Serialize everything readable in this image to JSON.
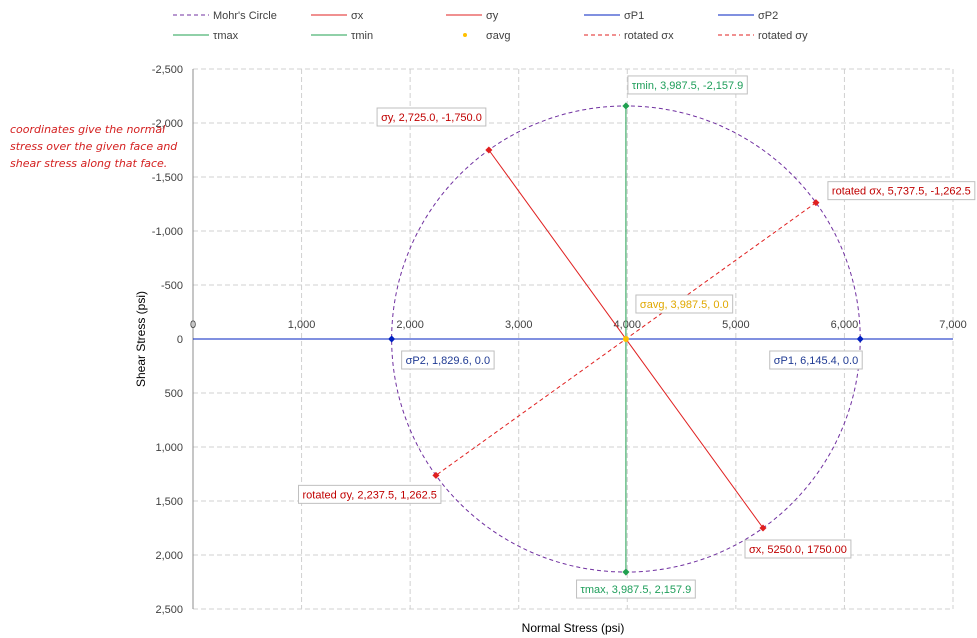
{
  "annotation": "coordinates give the normal stress over the given face and shear stress along that face.",
  "chart_data": {
    "type": "scatter",
    "title": "",
    "xlabel": "Normal Stress (psi)",
    "ylabel": "Shear Stress (psi)",
    "xlim": [
      0,
      7000
    ],
    "ylim": [
      -2500,
      2500
    ],
    "y_reversed": true,
    "x_ticks": [
      "0",
      "1,000",
      "2,000",
      "3,000",
      "4,000",
      "5,000",
      "6,000",
      "7,000"
    ],
    "y_ticks": [
      "-2,500",
      "-2,000",
      "-1,500",
      "-1,000",
      "-500",
      "0",
      "500",
      "1,000",
      "1,500",
      "2,000",
      "2,500"
    ],
    "grid": true,
    "legend_position": "top",
    "legend": [
      {
        "name": "Mohr's Circle",
        "color": "#7030a0",
        "style": "dashed"
      },
      {
        "name": "σx",
        "color": "#e02020",
        "style": "solid"
      },
      {
        "name": "σy",
        "color": "#e02020",
        "style": "solid"
      },
      {
        "name": "σP1",
        "color": "#0020c0",
        "style": "solid"
      },
      {
        "name": "σP2",
        "color": "#0020c0",
        "style": "solid"
      },
      {
        "name": "τmax",
        "color": "#20a050",
        "style": "solid"
      },
      {
        "name": "τmin",
        "color": "#20a050",
        "style": "solid"
      },
      {
        "name": "σavg",
        "color": "#ffc000",
        "style": "marker"
      },
      {
        "name": "rotated σx",
        "color": "#e02020",
        "style": "dashed"
      },
      {
        "name": "rotated σy",
        "color": "#e02020",
        "style": "dashed"
      }
    ],
    "circle": {
      "center_x": 3987.5,
      "center_y": 0,
      "radius": 2157.9,
      "color": "#7030a0"
    },
    "lines": [
      {
        "name": "σx-σy",
        "from": [
          2725.0,
          -1750.0
        ],
        "to": [
          5250.0,
          1750.0
        ],
        "color": "#e02020",
        "dash": false
      },
      {
        "name": "rotated",
        "from": [
          5737.5,
          -1262.5
        ],
        "to": [
          2237.5,
          1262.5
        ],
        "color": "#e02020",
        "dash": true
      },
      {
        "name": "principal",
        "from": [
          0,
          0
        ],
        "to": [
          7000,
          0
        ],
        "color": "#0020c0",
        "dash": false
      },
      {
        "name": "shear",
        "from": [
          3987.5,
          -2157.9
        ],
        "to": [
          3987.5,
          2157.9
        ],
        "color": "#20a050",
        "dash": false
      }
    ],
    "points": [
      {
        "name": "σy",
        "x": 2725.0,
        "y": -1750.0,
        "label": "σy, 2,725.0, -1,750.0",
        "color": "#e02020",
        "label_color": "#c00000",
        "pos": "left-top"
      },
      {
        "name": "σx",
        "x": 5250.0,
        "y": 1750.0,
        "label": "σx, 5250.0, 1750.00",
        "color": "#e02020",
        "label_color": "#c00000",
        "pos": "right-bottom"
      },
      {
        "name": "σP1",
        "x": 6145.4,
        "y": 0.0,
        "label": "σP1, 6,145.4, 0.0",
        "color": "#0020c0",
        "label_color": "#1f3a93",
        "pos": "left-bottom"
      },
      {
        "name": "σP2",
        "x": 1829.6,
        "y": 0.0,
        "label": "σP2, 1,829.6, 0.0",
        "color": "#0020c0",
        "label_color": "#1f3a93",
        "pos": "right-bottom"
      },
      {
        "name": "τmax",
        "x": 3987.5,
        "y": 2157.9,
        "label": "τmax, 3,987.5, 2,157.9",
        "color": "#20a050",
        "label_color": "#1e9e5a",
        "pos": "below"
      },
      {
        "name": "τmin",
        "x": 3987.5,
        "y": -2157.9,
        "label": "τmin, 3,987.5, -2,157.9",
        "color": "#20a050",
        "label_color": "#1e9e5a",
        "pos": "above-right"
      },
      {
        "name": "σavg",
        "x": 3987.5,
        "y": 0.0,
        "label": "σavg, 3,987.5, 0.0",
        "color": "#ffc000",
        "label_color": "#e0a800",
        "pos": "right-top"
      },
      {
        "name": "rotated σx",
        "x": 5737.5,
        "y": -1262.5,
        "label": "rotated σx, 5,737.5, -1,262.5",
        "color": "#e02020",
        "label_color": "#c00000",
        "pos": "right-top"
      },
      {
        "name": "rotated σy",
        "x": 2237.5,
        "y": 1262.5,
        "label": "rotated σy, 2,237.5, 1,262.5",
        "color": "#e02020",
        "label_color": "#c00000",
        "pos": "left-bottom"
      }
    ]
  }
}
